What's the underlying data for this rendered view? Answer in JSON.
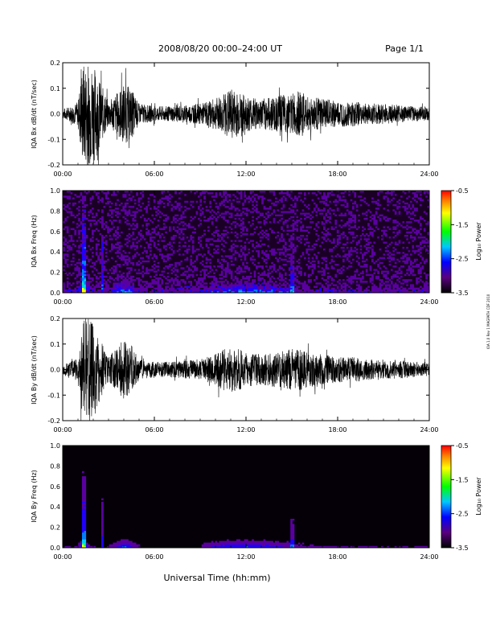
{
  "header": {
    "title": "2008/08/20  00:00–24:00 UT",
    "page": "Page 1/1"
  },
  "side_note": "IOA 1.0 Rev 1 MAGPATH CDF 2010",
  "chart_data": [
    {
      "type": "line",
      "ylabel": "IQA Bx dB/dt (nT/sec)",
      "ylim": [
        -0.2,
        0.2
      ],
      "yticks": [
        "0.2",
        "0.1",
        "0.0",
        "-0.1",
        "-0.2"
      ],
      "xlim": [
        "00:00",
        "24:00"
      ],
      "xticks": [
        "00:00",
        "06:00",
        "12:00",
        "18:00",
        "24:00"
      ],
      "envelope": {
        "x_hours": [
          0,
          0.5,
          1,
          1.3,
          1.5,
          2.0,
          2.5,
          3.0,
          3.5,
          4.0,
          4.5,
          5.0,
          6.0,
          7.0,
          8.0,
          9.0,
          10.0,
          10.5,
          11.0,
          11.5,
          12.0,
          13.0,
          14.0,
          15.0,
          15.5,
          16.0,
          17.0,
          18.0,
          19.0,
          20.0,
          21.0,
          22.0,
          23.0,
          24.0
        ],
        "amplitude": [
          0.02,
          0.03,
          0.05,
          0.2,
          0.2,
          0.2,
          0.12,
          0.05,
          0.08,
          0.12,
          0.1,
          0.04,
          0.03,
          0.03,
          0.035,
          0.04,
          0.06,
          0.08,
          0.1,
          0.09,
          0.07,
          0.06,
          0.07,
          0.08,
          0.09,
          0.07,
          0.06,
          0.05,
          0.05,
          0.04,
          0.04,
          0.035,
          0.03,
          0.025
        ]
      }
    },
    {
      "type": "heatmap",
      "ylabel": "IQA Bx Freq (Hz)",
      "ylim": [
        0,
        1.0
      ],
      "yticks": [
        "1.0",
        "0.8",
        "0.6",
        "0.4",
        "0.2",
        "0.0"
      ],
      "xlim": [
        "00:00",
        "24:00"
      ],
      "xticks": [
        "00:00",
        "06:00",
        "12:00",
        "18:00",
        "24:00"
      ],
      "colorbar": {
        "label": "Log₁₀ Power",
        "range": [
          -3.5,
          -0.5
        ],
        "ticks": [
          "-0.5",
          "-1.5",
          "-2.5",
          "-3.5"
        ]
      }
    },
    {
      "type": "line",
      "ylabel": "IQA By dB/dt (nT/sec)",
      "ylim": [
        -0.2,
        0.2
      ],
      "yticks": [
        "0.2",
        "0.1",
        "0.0",
        "-0.1",
        "-0.2"
      ],
      "xlim": [
        "00:00",
        "24:00"
      ],
      "xticks": [
        "00:00",
        "06:00",
        "12:00",
        "18:00",
        "24:00"
      ],
      "envelope": {
        "x_hours": [
          0,
          0.5,
          1,
          1.3,
          1.5,
          2.0,
          2.5,
          3.0,
          3.5,
          4.0,
          4.5,
          5.0,
          6.0,
          7.0,
          8.0,
          9.0,
          10.0,
          10.5,
          11.0,
          11.5,
          12.0,
          13.0,
          14.0,
          15.0,
          15.5,
          16.0,
          17.0,
          18.0,
          19.0,
          20.0,
          21.0,
          22.0,
          23.0,
          24.0
        ],
        "amplitude": [
          0.02,
          0.03,
          0.05,
          0.2,
          0.2,
          0.2,
          0.12,
          0.05,
          0.08,
          0.12,
          0.1,
          0.04,
          0.03,
          0.03,
          0.035,
          0.04,
          0.06,
          0.08,
          0.09,
          0.08,
          0.07,
          0.06,
          0.07,
          0.08,
          0.09,
          0.07,
          0.06,
          0.05,
          0.05,
          0.04,
          0.04,
          0.035,
          0.03,
          0.025
        ]
      }
    },
    {
      "type": "heatmap",
      "ylabel": "IQA By Freq (Hz)",
      "ylim": [
        0,
        1.0
      ],
      "yticks": [
        "1.0",
        "0.8",
        "0.6",
        "0.4",
        "0.2",
        "0.0"
      ],
      "xlim": [
        "00:00",
        "24:00"
      ],
      "xticks": [
        "00:00",
        "06:00",
        "12:00",
        "18:00",
        "24:00"
      ],
      "colorbar": {
        "label": "Log₁₀ Power",
        "range": [
          -3.5,
          -0.5
        ],
        "ticks": [
          "-0.5",
          "-1.5",
          "-2.5",
          "-3.5"
        ]
      }
    }
  ],
  "xlabel": "Universal Time (hh:mm)"
}
